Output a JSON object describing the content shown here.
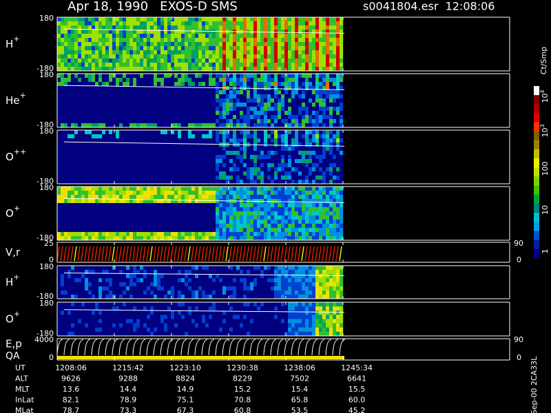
{
  "header": {
    "title": "Apr 18, 1990   EXOS-D SMS",
    "file": "s0041804.esr  12:08:06"
  },
  "panels": [
    {
      "label": "H",
      "sup": "+",
      "ytop": "180",
      "ybottom": "-180"
    },
    {
      "label": "He",
      "sup": "+",
      "ytop": "180",
      "ybottom": "-180"
    },
    {
      "label": "O",
      "sup": "++",
      "ytop": "180",
      "ybottom": "-180"
    },
    {
      "label": "O",
      "sup": "+",
      "ytop": "180",
      "ybottom": "-180"
    },
    {
      "label": "V,r",
      "ytop": "25",
      "ybottom": "0",
      "rtop": "90",
      "rbottom": "0"
    },
    {
      "label": "H",
      "sup": "+",
      "ytop": "180",
      "ybottom": "-180"
    },
    {
      "label": "O",
      "sup": "+",
      "ytop": "180",
      "ybottom": "-180"
    },
    {
      "label": "E,p",
      "label2": "QA",
      "ytop": "4000",
      "ybottom": "0",
      "rtop": "90",
      "rbottom": "0"
    }
  ],
  "colorbar": {
    "title": "Ct/Smp",
    "labels": [
      {
        "base": "10",
        "exp": "4"
      },
      {
        "base": "10",
        "exp": "3"
      },
      "100",
      "10",
      "1"
    ]
  },
  "table": {
    "rows": [
      {
        "name": "UT",
        "values": [
          "1208:06",
          "1215:42",
          "1223:10",
          "1230:38",
          "1238:06",
          "1245:34"
        ]
      },
      {
        "name": "ALT",
        "values": [
          "9626",
          "9288",
          "8824",
          "8229",
          "7502",
          "6641"
        ]
      },
      {
        "name": "MLT",
        "values": [
          "13.6",
          "14.4",
          "14.9",
          "15.2",
          "15.4",
          "15.5"
        ]
      },
      {
        "name": "InLat",
        "values": [
          "82.1",
          "78.9",
          "75.1",
          "70.8",
          "65.8",
          "60.0"
        ]
      },
      {
        "name": "MLat",
        "values": [
          "78.7",
          "73.3",
          "67.3",
          "60.8",
          "53.5",
          "45.2"
        ]
      }
    ]
  },
  "footer": "Sep-00 2CA33L"
}
